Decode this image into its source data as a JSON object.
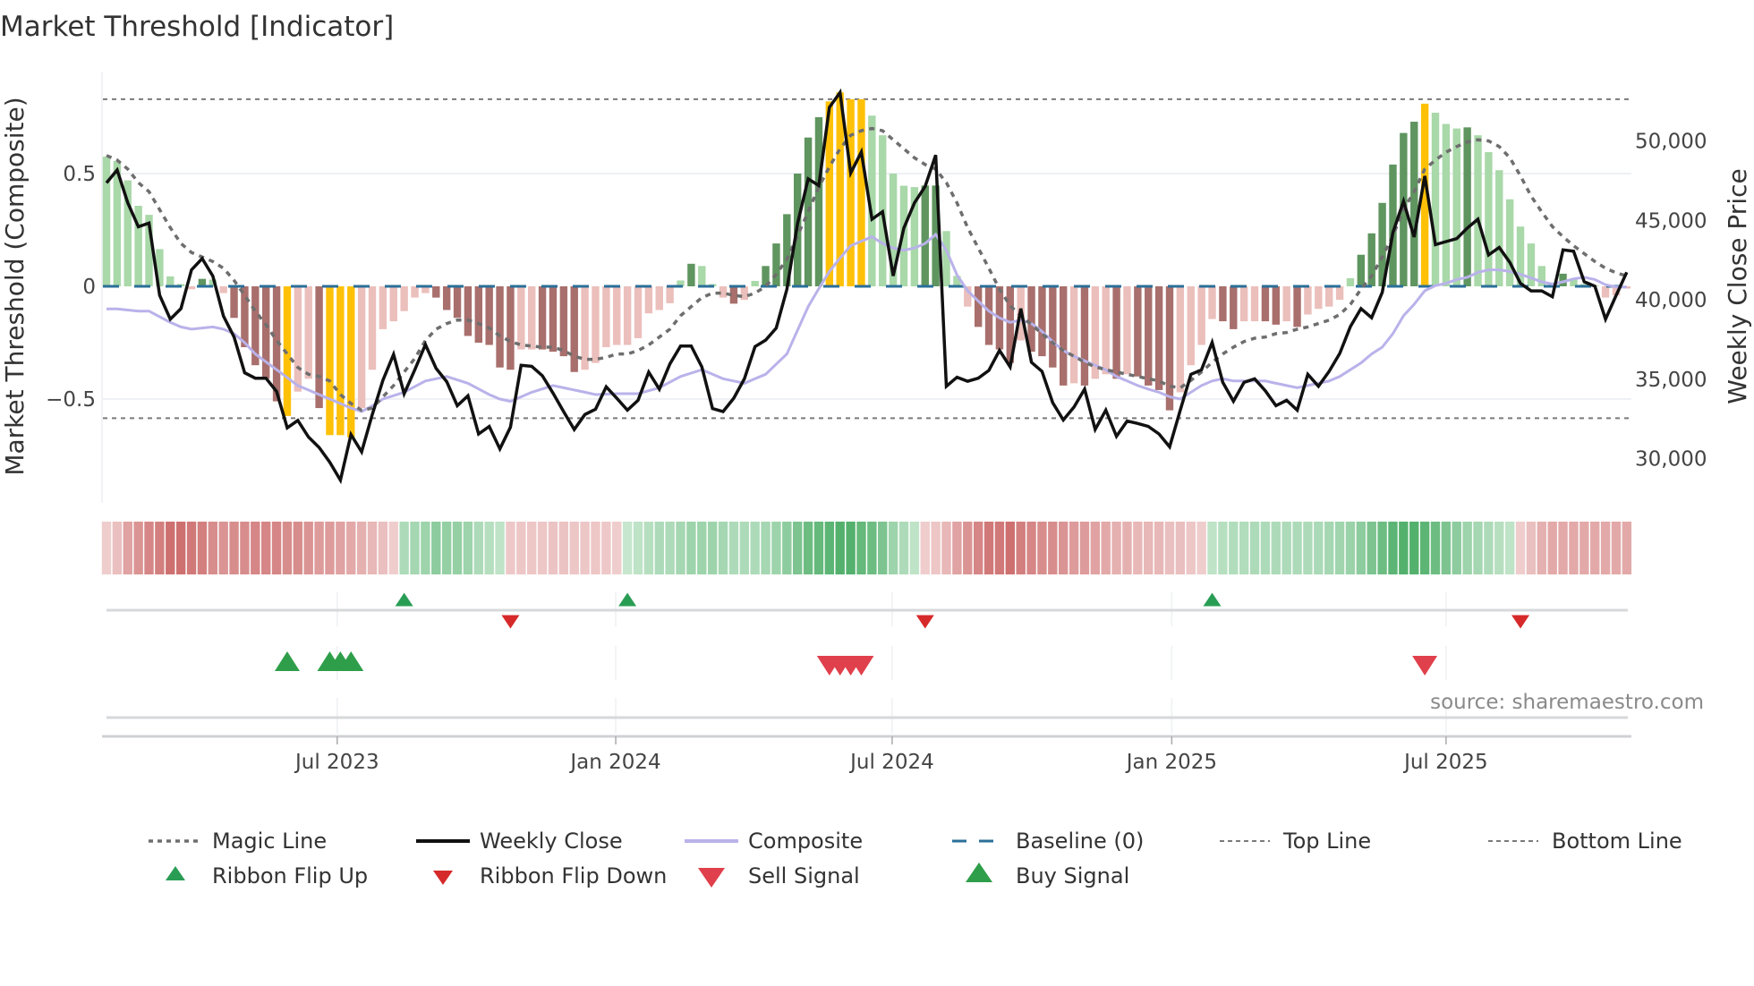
{
  "chart_data": {
    "type": "bar",
    "title": "Market Threshold [Indicator]",
    "ylabel_left": "Market Threshold (Composite)",
    "ylabel_right": "Weekly Close Price",
    "source": "source: sharemaestro.com",
    "x_unit": "week index",
    "ylim_left": [
      -0.95,
      0.95
    ],
    "ylim_right": [
      26500,
      54500
    ],
    "left_ticks": [
      {
        "v": 0.5,
        "label": "0.5"
      },
      {
        "v": 0,
        "label": "0"
      },
      {
        "v": -0.5,
        "label": "−0.5"
      }
    ],
    "right_ticks": [
      {
        "v": 50000,
        "label": "50,000"
      },
      {
        "v": 45000,
        "label": "45,000"
      },
      {
        "v": 40000,
        "label": "40,000"
      },
      {
        "v": 35000,
        "label": "35,000"
      },
      {
        "v": 30000,
        "label": "30,000"
      }
    ],
    "x_ticks": [
      {
        "x": 21.7,
        "label": "Jul 2023"
      },
      {
        "x": 47.9,
        "label": "Jan 2024"
      },
      {
        "x": 73.9,
        "label": "Jul 2024"
      },
      {
        "x": 100.2,
        "label": "Jan 2025"
      },
      {
        "x": 126.0,
        "label": "Jul 2025"
      }
    ],
    "top_line": 0.83,
    "bottom_line": -0.585,
    "baseline": 0,
    "bar_colors": {
      "lg": "#a9d8a9",
      "dg": "#5f955f",
      "pk": "#ebbfbb",
      "br": "#a86f6c",
      "yl": "#ffc107"
    },
    "composite_bars": [
      0.575,
      0.556,
      0.47,
      0.357,
      0.317,
      0.165,
      0.044,
      0.01,
      -0.013,
      0.033,
      0.03,
      -0.03,
      -0.14,
      -0.27,
      -0.35,
      -0.41,
      -0.51,
      -0.575,
      -0.467,
      -0.41,
      -0.54,
      -0.66,
      -0.66,
      -0.67,
      -0.54,
      -0.37,
      -0.19,
      -0.155,
      -0.11,
      -0.05,
      -0.03,
      -0.05,
      -0.105,
      -0.14,
      -0.22,
      -0.25,
      -0.26,
      -0.36,
      -0.37,
      -0.28,
      -0.28,
      -0.28,
      -0.29,
      -0.31,
      -0.38,
      -0.37,
      -0.34,
      -0.27,
      -0.26,
      -0.26,
      -0.23,
      -0.12,
      -0.105,
      -0.075,
      0.026,
      0.1,
      0.09,
      0.01,
      -0.05,
      -0.077,
      -0.06,
      0.024,
      0.09,
      0.19,
      0.32,
      0.5,
      0.66,
      0.75,
      0.82,
      0.86,
      0.83,
      0.83,
      0.757,
      0.67,
      0.5,
      0.446,
      0.44,
      0.447,
      0.447,
      0.245,
      0.046,
      -0.09,
      -0.18,
      -0.26,
      -0.28,
      -0.34,
      -0.24,
      -0.29,
      -0.31,
      -0.36,
      -0.44,
      -0.43,
      -0.44,
      -0.41,
      -0.39,
      -0.41,
      -0.39,
      -0.4,
      -0.44,
      -0.46,
      -0.55,
      -0.47,
      -0.35,
      -0.26,
      -0.145,
      -0.155,
      -0.19,
      -0.155,
      -0.155,
      -0.155,
      -0.17,
      -0.155,
      -0.18,
      -0.125,
      -0.1,
      -0.09,
      -0.06,
      0.036,
      0.14,
      0.235,
      0.37,
      0.54,
      0.68,
      0.73,
      0.81,
      0.77,
      0.72,
      0.7,
      0.705,
      0.67,
      0.595,
      0.515,
      0.386,
      0.265,
      0.19,
      0.09,
      0.013,
      0.056,
      0.033,
      0.01,
      0.004,
      -0.05,
      -0.04,
      -0.01
    ],
    "bar_kinds": [
      "lg",
      "lg",
      "lg",
      "lg",
      "lg",
      "lg",
      "lg",
      "lg",
      "pk",
      "dg",
      "lg",
      "pk",
      "br",
      "br",
      "br",
      "br",
      "br",
      "yl",
      "pk",
      "pk",
      "br",
      "yl",
      "yl",
      "yl",
      "pk",
      "pk",
      "pk",
      "pk",
      "pk",
      "pk",
      "pk",
      "br",
      "br",
      "br",
      "br",
      "br",
      "br",
      "br",
      "br",
      "pk",
      "pk",
      "br",
      "br",
      "br",
      "br",
      "pk",
      "pk",
      "pk",
      "pk",
      "pk",
      "pk",
      "pk",
      "pk",
      "pk",
      "lg",
      "dg",
      "lg",
      "lg",
      "pk",
      "br",
      "pk",
      "lg",
      "dg",
      "dg",
      "dg",
      "dg",
      "dg",
      "dg",
      "yl",
      "yl",
      "yl",
      "yl",
      "lg",
      "lg",
      "lg",
      "lg",
      "lg",
      "dg",
      "dg",
      "lg",
      "lg",
      "pk",
      "br",
      "br",
      "br",
      "br",
      "pk",
      "br",
      "br",
      "br",
      "br",
      "pk",
      "br",
      "pk",
      "pk",
      "br",
      "pk",
      "br",
      "br",
      "br",
      "br",
      "pk",
      "pk",
      "pk",
      "pk",
      "br",
      "br",
      "pk",
      "pk",
      "br",
      "br",
      "pk",
      "br",
      "pk",
      "pk",
      "pk",
      "pk",
      "lg",
      "dg",
      "dg",
      "dg",
      "dg",
      "dg",
      "dg",
      "yl",
      "lg",
      "lg",
      "lg",
      "dg",
      "lg",
      "lg",
      "lg",
      "lg",
      "lg",
      "lg",
      "lg",
      "lg",
      "dg",
      "lg",
      "lg",
      "lg",
      "pk",
      "pk",
      "pk"
    ],
    "weekly_close": [
      47360,
      48170,
      46100,
      44600,
      44830,
      40280,
      38780,
      39440,
      41880,
      42590,
      41500,
      38970,
      37650,
      35400,
      35060,
      35060,
      34220,
      31930,
      32400,
      31360,
      30700,
      29770,
      28640,
      31510,
      30420,
      32770,
      34930,
      36560,
      34080,
      35590,
      37180,
      35680,
      34840,
      33330,
      33950,
      31550,
      32020,
      30610,
      31980,
      35870,
      35810,
      35210,
      34120,
      32960,
      31830,
      32770,
      33110,
      34520,
      33800,
      33050,
      33670,
      35440,
      34370,
      35960,
      37090,
      37090,
      35770,
      33150,
      32960,
      33800,
      35020,
      37050,
      37460,
      38220,
      40660,
      44790,
      47610,
      47190,
      52110,
      53050,
      47980,
      49300,
      45070,
      45540,
      41500,
      44510,
      46100,
      47140,
      49110,
      34550,
      35120,
      34870,
      35060,
      35550,
      36810,
      35770,
      39440,
      36060,
      35490,
      33520,
      32430,
      33240,
      34370,
      31830,
      33050,
      31400,
      32360,
      32210,
      32020,
      31550,
      30740,
      33050,
      35300,
      35590,
      37310,
      34800,
      33610,
      34800,
      35020,
      34270,
      33330,
      33670,
      33050,
      35300,
      34550,
      35490,
      36620,
      38310,
      39440,
      38870,
      40470,
      44230,
      46200,
      43950,
      47790,
      43470,
      43660,
      43850,
      44510,
      45070,
      42820,
      43290,
      42350,
      41030,
      40560,
      40560,
      40190,
      43140,
      43060,
      41130,
      40850,
      38780,
      40280,
      41730
    ],
    "composite_line": [
      -0.1,
      -0.1,
      -0.105,
      -0.11,
      -0.11,
      -0.135,
      -0.16,
      -0.18,
      -0.19,
      -0.185,
      -0.18,
      -0.19,
      -0.21,
      -0.25,
      -0.3,
      -0.335,
      -0.37,
      -0.405,
      -0.44,
      -0.46,
      -0.48,
      -0.5,
      -0.52,
      -0.54,
      -0.555,
      -0.53,
      -0.5,
      -0.485,
      -0.47,
      -0.445,
      -0.42,
      -0.41,
      -0.4,
      -0.415,
      -0.43,
      -0.455,
      -0.48,
      -0.5,
      -0.51,
      -0.49,
      -0.47,
      -0.455,
      -0.44,
      -0.45,
      -0.46,
      -0.47,
      -0.48,
      -0.478,
      -0.476,
      -0.476,
      -0.476,
      -0.463,
      -0.45,
      -0.425,
      -0.4,
      -0.385,
      -0.37,
      -0.39,
      -0.41,
      -0.42,
      -0.43,
      -0.41,
      -0.39,
      -0.345,
      -0.3,
      -0.195,
      -0.09,
      -0.01,
      0.066,
      0.125,
      0.18,
      0.2,
      0.22,
      0.19,
      0.17,
      0.16,
      0.17,
      0.19,
      0.23,
      0.16,
      0.05,
      -0.02,
      -0.066,
      -0.11,
      -0.14,
      -0.16,
      -0.15,
      -0.165,
      -0.2,
      -0.245,
      -0.285,
      -0.31,
      -0.33,
      -0.35,
      -0.37,
      -0.4,
      -0.42,
      -0.44,
      -0.456,
      -0.47,
      -0.49,
      -0.5,
      -0.47,
      -0.44,
      -0.42,
      -0.41,
      -0.42,
      -0.42,
      -0.42,
      -0.42,
      -0.43,
      -0.44,
      -0.45,
      -0.44,
      -0.43,
      -0.42,
      -0.4,
      -0.37,
      -0.34,
      -0.3,
      -0.27,
      -0.21,
      -0.13,
      -0.08,
      -0.02,
      0.003,
      0.013,
      0.03,
      0.04,
      0.062,
      0.073,
      0.073,
      0.066,
      0.053,
      0.037,
      0.02,
      0.01,
      0.02,
      0.033,
      0.04,
      0.03,
      0.007,
      -0.003,
      -0.003
    ],
    "magic_line": [
      0.58,
      0.56,
      0.52,
      0.46,
      0.42,
      0.34,
      0.26,
      0.19,
      0.15,
      0.13,
      0.11,
      0.08,
      0.026,
      -0.04,
      -0.11,
      -0.17,
      -0.24,
      -0.3,
      -0.36,
      -0.39,
      -0.4,
      -0.42,
      -0.48,
      -0.52,
      -0.55,
      -0.54,
      -0.49,
      -0.44,
      -0.38,
      -0.32,
      -0.24,
      -0.19,
      -0.165,
      -0.15,
      -0.15,
      -0.165,
      -0.185,
      -0.22,
      -0.245,
      -0.26,
      -0.265,
      -0.27,
      -0.27,
      -0.285,
      -0.31,
      -0.324,
      -0.324,
      -0.315,
      -0.3,
      -0.3,
      -0.285,
      -0.26,
      -0.225,
      -0.19,
      -0.13,
      -0.09,
      -0.05,
      -0.03,
      -0.03,
      -0.04,
      -0.046,
      -0.03,
      0,
      0.053,
      0.12,
      0.225,
      0.33,
      0.44,
      0.53,
      0.61,
      0.67,
      0.69,
      0.7,
      0.69,
      0.65,
      0.61,
      0.57,
      0.54,
      0.52,
      0.46,
      0.37,
      0.26,
      0.17,
      0.08,
      -0.013,
      -0.086,
      -0.13,
      -0.17,
      -0.21,
      -0.25,
      -0.285,
      -0.31,
      -0.337,
      -0.357,
      -0.37,
      -0.38,
      -0.39,
      -0.4,
      -0.41,
      -0.42,
      -0.443,
      -0.45,
      -0.417,
      -0.38,
      -0.337,
      -0.3,
      -0.27,
      -0.245,
      -0.23,
      -0.225,
      -0.21,
      -0.205,
      -0.19,
      -0.18,
      -0.165,
      -0.15,
      -0.125,
      -0.08,
      -0.013,
      0.046,
      0.13,
      0.225,
      0.34,
      0.42,
      0.52,
      0.56,
      0.595,
      0.62,
      0.64,
      0.65,
      0.645,
      0.62,
      0.57,
      0.49,
      0.4,
      0.33,
      0.265,
      0.22,
      0.18,
      0.145,
      0.11,
      0.08,
      0.06,
      0.046
    ],
    "ribbon": [
      -0.15,
      -0.25,
      -0.45,
      -0.55,
      -0.65,
      -0.7,
      -0.8,
      -0.8,
      -0.75,
      -0.7,
      -0.6,
      -0.55,
      -0.6,
      -0.6,
      -0.65,
      -0.65,
      -0.65,
      -0.6,
      -0.6,
      -0.55,
      -0.5,
      -0.5,
      -0.45,
      -0.4,
      -0.35,
      -0.3,
      -0.25,
      -0.15,
      0.3,
      0.35,
      0.4,
      0.5,
      0.45,
      0.45,
      0.4,
      0.3,
      0.25,
      0.2,
      -0.18,
      -0.2,
      -0.2,
      -0.2,
      -0.22,
      -0.22,
      -0.2,
      -0.2,
      -0.2,
      -0.18,
      -0.15,
      0.15,
      0.2,
      0.25,
      0.3,
      0.3,
      0.35,
      0.4,
      0.4,
      0.4,
      0.35,
      0.3,
      0.3,
      0.3,
      0.35,
      0.4,
      0.5,
      0.6,
      0.7,
      0.75,
      0.8,
      0.85,
      0.85,
      0.75,
      0.7,
      0.6,
      0.4,
      0.3,
      0.2,
      -0.15,
      -0.2,
      -0.3,
      -0.45,
      -0.55,
      -0.65,
      -0.75,
      -0.75,
      -0.8,
      -0.7,
      -0.65,
      -0.6,
      -0.6,
      -0.55,
      -0.5,
      -0.5,
      -0.45,
      -0.4,
      -0.35,
      -0.35,
      -0.3,
      -0.3,
      -0.3,
      -0.25,
      -0.25,
      -0.2,
      -0.15,
      0.2,
      0.25,
      0.28,
      0.28,
      0.3,
      0.3,
      0.3,
      0.3,
      0.3,
      0.3,
      0.32,
      0.35,
      0.38,
      0.42,
      0.5,
      0.6,
      0.7,
      0.8,
      0.85,
      0.85,
      0.8,
      0.7,
      0.6,
      0.5,
      0.4,
      0.35,
      0.3,
      0.25,
      0.2,
      -0.15,
      -0.25,
      -0.35,
      -0.4,
      -0.4,
      -0.4,
      -0.4,
      -0.4,
      -0.4,
      -0.4,
      -0.4
    ],
    "ribbon_flip_up": [
      28,
      49,
      104
    ],
    "ribbon_flip_down": [
      38,
      77,
      133
    ],
    "buy_signals": [
      17,
      21,
      22,
      23
    ],
    "sell_signals": [
      68,
      69,
      70,
      71,
      124
    ],
    "colors": {
      "magic": "#6e6e6e",
      "close": "#111111",
      "composite": "#b9b2ea",
      "baseline": "#2b6f99",
      "threshold": "#7a7a7a",
      "flip_up": "#2a9d55",
      "flip_down": "#d62a2a",
      "sell": "#e0404c",
      "buy": "#2f9e4a"
    },
    "legend": [
      {
        "key": "magic",
        "label": "Magic Line"
      },
      {
        "key": "close",
        "label": "Weekly Close"
      },
      {
        "key": "composite",
        "label": "Composite"
      },
      {
        "key": "baseline",
        "label": "Baseline (0)"
      },
      {
        "key": "top",
        "label": "Top Line"
      },
      {
        "key": "bottom",
        "label": "Bottom Line"
      },
      {
        "key": "flip_up",
        "label": "Ribbon Flip Up"
      },
      {
        "key": "flip_down",
        "label": "Ribbon Flip Down"
      },
      {
        "key": "sell",
        "label": "Sell Signal"
      },
      {
        "key": "buy",
        "label": "Buy Signal"
      }
    ]
  }
}
